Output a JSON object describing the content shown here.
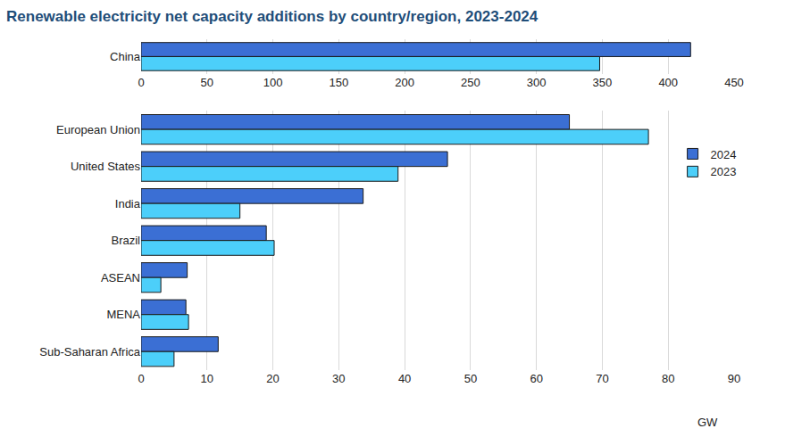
{
  "chart_data": [
    {
      "type": "bar",
      "title": "Renewable electricity net capacity additions by country/region, 2023-2024",
      "orientation": "horizontal",
      "categories": [
        "China"
      ],
      "series": [
        {
          "name": "2024",
          "color": "#3b6fd4",
          "values": [
            417
          ]
        },
        {
          "name": "2023",
          "color": "#4ccffa",
          "values": [
            348
          ]
        }
      ],
      "xlim": [
        0,
        450
      ],
      "xticks": [
        0,
        50,
        100,
        150,
        200,
        250,
        300,
        350,
        400,
        450
      ],
      "grid": true
    },
    {
      "type": "bar",
      "orientation": "horizontal",
      "xlabel": "GW",
      "categories": [
        "European Union",
        "United States",
        "India",
        "Brazil",
        "ASEAN",
        "MENA",
        "Sub-Saharan Africa"
      ],
      "series": [
        {
          "name": "2024",
          "color": "#3b6fd4",
          "values": [
            65,
            46.5,
            33.7,
            19,
            7,
            6.8,
            11.7
          ]
        },
        {
          "name": "2023",
          "color": "#4ccffa",
          "values": [
            77,
            39,
            15,
            20.2,
            3,
            7.2,
            5
          ]
        }
      ],
      "xlim": [
        0,
        90
      ],
      "xticks": [
        0,
        10,
        20,
        30,
        40,
        50,
        60,
        70,
        80,
        90
      ],
      "grid": true,
      "legend": "right"
    }
  ]
}
